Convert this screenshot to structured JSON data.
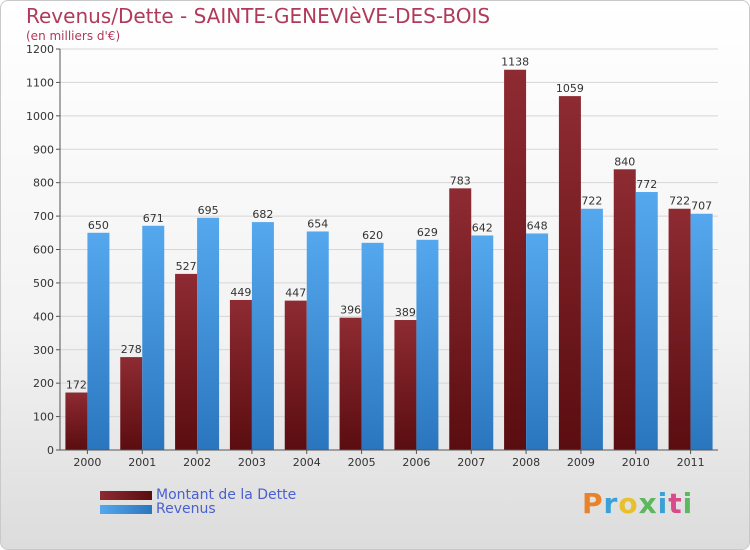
{
  "chart_data": {
    "type": "bar",
    "title": "Revenus/Dette - SAINTE-GENEVIèVE-DES-BOIS",
    "subtitle": "(en milliers d'€)",
    "categories": [
      "2000",
      "2001",
      "2002",
      "2003",
      "2004",
      "2005",
      "2006",
      "2007",
      "2008",
      "2009",
      "2010",
      "2011"
    ],
    "series": [
      {
        "name": "Montant de la Dette",
        "color": "#7a1e24",
        "values": [
          172,
          278,
          527,
          449,
          447,
          396,
          389,
          783,
          1138,
          1059,
          840,
          722
        ]
      },
      {
        "name": "Revenus",
        "color": "#3d8fd8",
        "values": [
          650,
          671,
          695,
          682,
          654,
          620,
          629,
          642,
          648,
          722,
          772,
          707
        ]
      }
    ],
    "ylim": [
      0,
      1200
    ],
    "yticks": [
      0,
      100,
      200,
      300,
      400,
      500,
      600,
      700,
      800,
      900,
      1000,
      1100,
      1200
    ],
    "grid": true,
    "legend_position": "bottom-left"
  },
  "logo": {
    "text": "Proxiti",
    "colors": [
      "#e8832a",
      "#3aa0d8",
      "#e8c02a",
      "#5cb85c",
      "#3aa0d8",
      "#d84a8a",
      "#5cb85c"
    ]
  }
}
